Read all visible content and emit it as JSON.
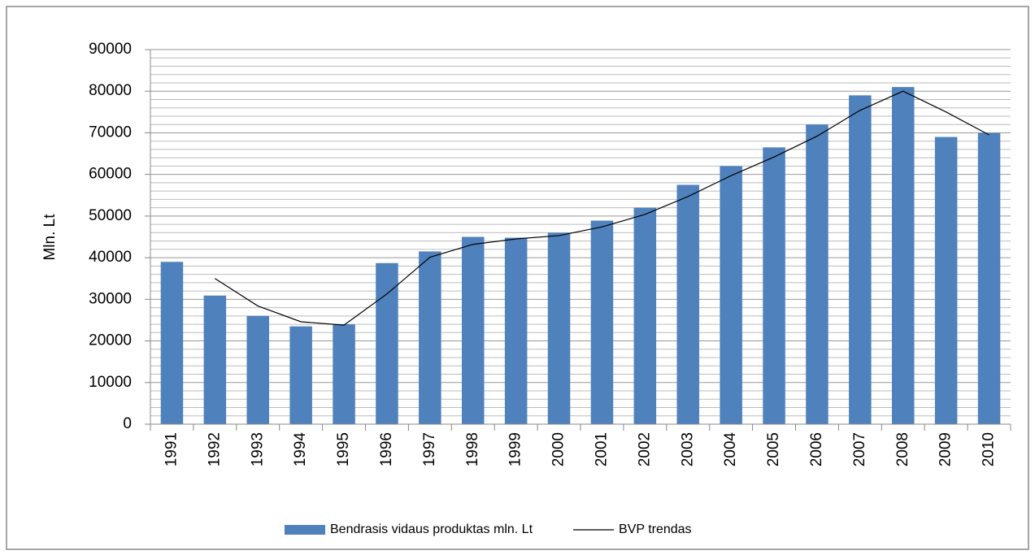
{
  "chart_data": {
    "type": "bar",
    "y_label": "Mln. Lt",
    "categories": [
      "1991",
      "1992",
      "1993",
      "1994",
      "1995",
      "1996",
      "1997",
      "1998",
      "1999",
      "2000",
      "2001",
      "2002",
      "2003",
      "2004",
      "2005",
      "2006",
      "2007",
      "2008",
      "2009",
      "2010"
    ],
    "series": [
      {
        "name": "Bendrasis vidaus produktas mln. Lt",
        "type": "bar",
        "color": "#4f81bd",
        "values": [
          39000,
          30900,
          26000,
          23500,
          24000,
          38700,
          41500,
          45000,
          44800,
          46000,
          48900,
          52000,
          57500,
          62000,
          66500,
          72000,
          79000,
          81000,
          69000,
          70000
        ]
      },
      {
        "name": "BVP trendas",
        "type": "line",
        "color": "#000000",
        "values": [
          null,
          35000,
          28400,
          24600,
          23800,
          31300,
          40100,
          43200,
          44500,
          45300,
          47400,
          50400,
          54700,
          59700,
          64200,
          69200,
          75400,
          80000,
          75000,
          69500
        ]
      }
    ],
    "ylim": [
      0,
      90000
    ],
    "yticks": [
      0,
      10000,
      20000,
      30000,
      40000,
      50000,
      60000,
      70000,
      80000,
      90000
    ],
    "grid": true,
    "legend": "bottom"
  }
}
